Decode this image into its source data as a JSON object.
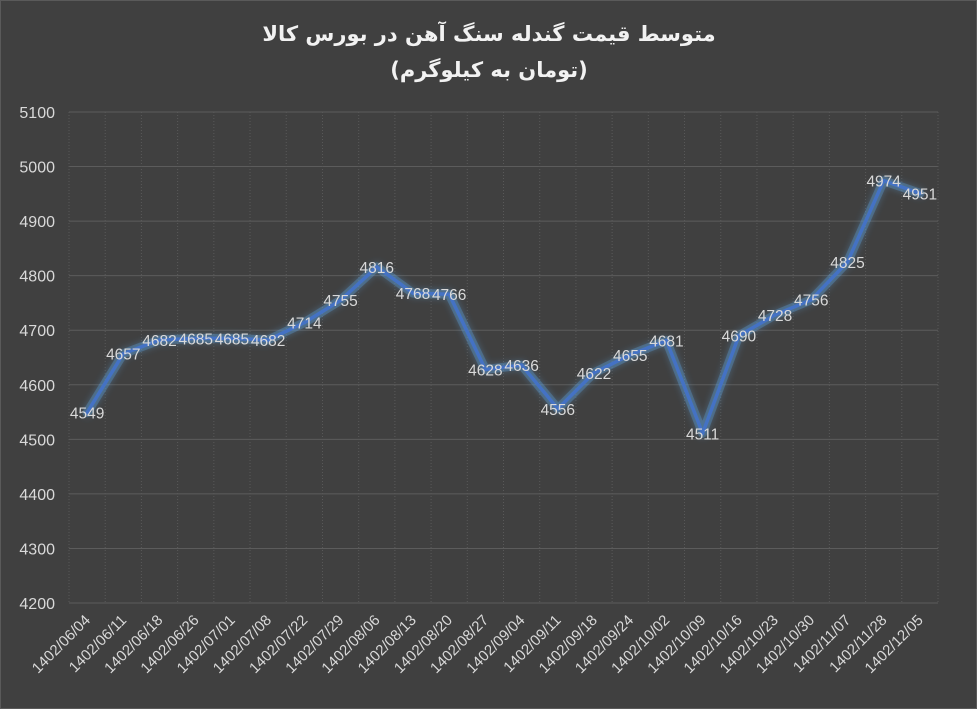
{
  "chart_data": {
    "type": "line",
    "title": "متوسط قیمت گندله سنگ آهن در بورس کالا",
    "subtitle": "(تومان به کیلوگرم)",
    "categories": [
      "1402/06/04",
      "1402/06/11",
      "1402/06/18",
      "1402/06/26",
      "1402/07/01",
      "1402/07/08",
      "1402/07/22",
      "1402/07/29",
      "1402/08/06",
      "1402/08/13",
      "1402/08/20",
      "1402/08/27",
      "1402/09/04",
      "1402/09/11",
      "1402/09/18",
      "1402/09/24",
      "1402/10/02",
      "1402/10/09",
      "1402/10/16",
      "1402/10/23",
      "1402/10/30",
      "1402/11/07",
      "1402/11/28",
      "1402/12/05"
    ],
    "values": [
      4549,
      4657,
      4682,
      4685,
      4685,
      4682,
      4714,
      4755,
      4816,
      4768,
      4766,
      4628,
      4636,
      4556,
      4622,
      4655,
      4681,
      4511,
      4690,
      4728,
      4756,
      4825,
      4974,
      4951
    ],
    "ylim": [
      4200,
      5100
    ],
    "yticks": [
      4200,
      4300,
      4400,
      4500,
      4600,
      4700,
      4800,
      4900,
      5000,
      5100
    ],
    "xlabel": "",
    "ylabel": "",
    "grid": true,
    "legend": "none",
    "line_color": "#4472c4",
    "glow_color": "#5b9bd5"
  }
}
